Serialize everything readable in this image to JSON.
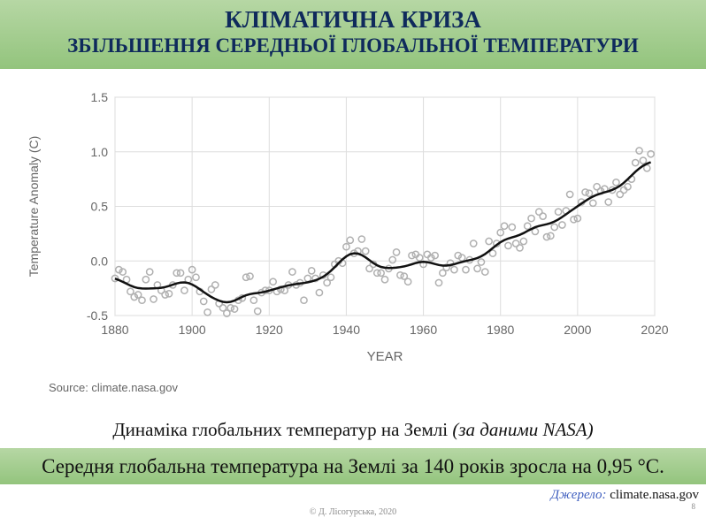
{
  "header": {
    "title": "КЛІМАТИЧНА КРИЗА",
    "subtitle": "ЗБІЛЬШЕННЯ СЕРЕДНЬОЇ ГЛОБАЛЬНОЇ ТЕМПЕРАТУРИ"
  },
  "chart_data": {
    "type": "scatter",
    "xlabel": "YEAR",
    "ylabel": "Temperature Anomaly (C)",
    "xlim": [
      1880,
      2020
    ],
    "ylim": [
      -0.5,
      1.5
    ],
    "xticks": [
      "1880",
      "1900",
      "1920",
      "1940",
      "1960",
      "1980",
      "2000",
      "2020"
    ],
    "yticks": [
      "1.5",
      "1.0",
      "0.5",
      "0.0",
      "-0.5"
    ],
    "grid": true,
    "source": "Source: climate.nasa.gov",
    "series": [
      {
        "style": "open-circles",
        "color": "#b0b0b0",
        "x_start": 1880,
        "values": [
          -0.16,
          -0.08,
          -0.1,
          -0.17,
          -0.28,
          -0.33,
          -0.31,
          -0.36,
          -0.17,
          -0.1,
          -0.35,
          -0.22,
          -0.27,
          -0.31,
          -0.3,
          -0.22,
          -0.11,
          -0.11,
          -0.27,
          -0.17,
          -0.08,
          -0.15,
          -0.28,
          -0.37,
          -0.47,
          -0.26,
          -0.22,
          -0.39,
          -0.43,
          -0.48,
          -0.43,
          -0.44,
          -0.36,
          -0.34,
          -0.15,
          -0.14,
          -0.36,
          -0.46,
          -0.29,
          -0.27,
          -0.27,
          -0.19,
          -0.28,
          -0.26,
          -0.27,
          -0.22,
          -0.1,
          -0.22,
          -0.2,
          -0.36,
          -0.16,
          -0.09,
          -0.16,
          -0.29,
          -0.13,
          -0.2,
          -0.15,
          -0.03,
          0.0,
          -0.02,
          0.13,
          0.19,
          0.07,
          0.09,
          0.2,
          0.09,
          -0.07,
          -0.03,
          -0.11,
          -0.11,
          -0.17,
          -0.07,
          0.01,
          0.08,
          -0.13,
          -0.14,
          -0.19,
          0.05,
          0.06,
          0.03,
          -0.03,
          0.06,
          0.03,
          0.05,
          -0.2,
          -0.11,
          -0.06,
          -0.02,
          -0.08,
          0.05,
          0.03,
          -0.08,
          0.01,
          0.16,
          -0.07,
          -0.01,
          -0.1,
          0.18,
          0.07,
          0.16,
          0.26,
          0.32,
          0.14,
          0.31,
          0.16,
          0.12,
          0.18,
          0.32,
          0.39,
          0.27,
          0.45,
          0.41,
          0.22,
          0.23,
          0.31,
          0.45,
          0.33,
          0.46,
          0.61,
          0.38,
          0.39,
          0.54,
          0.63,
          0.62,
          0.53,
          0.68,
          0.64,
          0.66,
          0.54,
          0.65,
          0.72,
          0.61,
          0.65,
          0.68,
          0.75,
          0.9,
          1.01,
          0.92,
          0.85,
          0.98
        ]
      },
      {
        "style": "smoothed-line",
        "color": "#111111"
      }
    ]
  },
  "caption": {
    "text": "Динаміка глобальних температур на Землі ",
    "italic": "(за даними NASA)"
  },
  "highlight": "Середня глобальна температура на Землі за 140 років зросла на 0,95 °C.",
  "source": {
    "label": "Джерело:",
    "value": "climate.nasa.gov"
  },
  "page_number": "8",
  "copyright": "© Д. Лісогурська, 2020"
}
